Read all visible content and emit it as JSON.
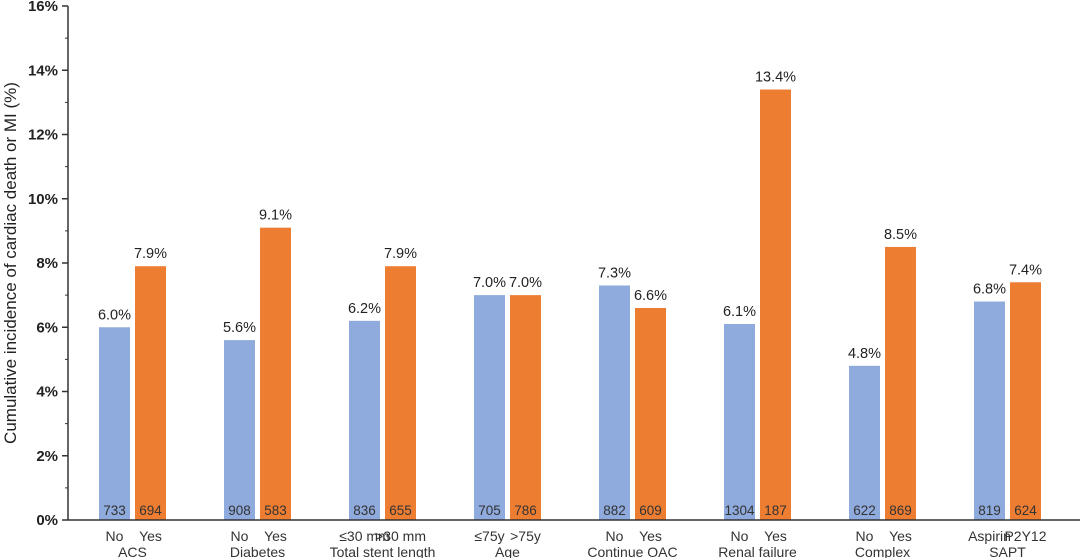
{
  "chart_data": {
    "type": "bar",
    "title": "",
    "ylabel": "Cumulative incidence of cardiac death or MI (%)",
    "xlabel": "",
    "ylim": [
      0,
      16
    ],
    "yticks": [
      0,
      2,
      4,
      6,
      8,
      10,
      12,
      14,
      16
    ],
    "ytick_labels": [
      "0%",
      "2%",
      "4%",
      "6%",
      "8%",
      "10%",
      "12%",
      "14%",
      "16%"
    ],
    "grid": false,
    "legend": "none",
    "colors": {
      "first": "#8faadc",
      "second": "#ed7d31"
    },
    "groups": [
      {
        "name": "ACS",
        "bars": [
          {
            "label": "No",
            "value": 6.0,
            "value_label": "6.0%",
            "n": "733"
          },
          {
            "label": "Yes",
            "value": 7.9,
            "value_label": "7.9%",
            "n": "694"
          }
        ]
      },
      {
        "name": "Diabetes",
        "bars": [
          {
            "label": "No",
            "value": 5.6,
            "value_label": "5.6%",
            "n": "908"
          },
          {
            "label": "Yes",
            "value": 9.1,
            "value_label": "9.1%",
            "n": "583"
          }
        ]
      },
      {
        "name": "Total stent length",
        "bars": [
          {
            "label": "≤30 mm",
            "value": 6.2,
            "value_label": "6.2%",
            "n": "836"
          },
          {
            "label": ">30 mm",
            "value": 7.9,
            "value_label": "7.9%",
            "n": "655"
          }
        ]
      },
      {
        "name": "Age",
        "bars": [
          {
            "label": "≤75y",
            "value": 7.0,
            "value_label": "7.0%",
            "n": "705"
          },
          {
            "label": ">75y",
            "value": 7.0,
            "value_label": "7.0%",
            "n": "786"
          }
        ]
      },
      {
        "name": "Continue OAC",
        "bars": [
          {
            "label": "No",
            "value": 7.3,
            "value_label": "7.3%",
            "n": "882"
          },
          {
            "label": "Yes",
            "value": 6.6,
            "value_label": "6.6%",
            "n": "609"
          }
        ]
      },
      {
        "name": "Renal failure",
        "bars": [
          {
            "label": "No",
            "value": 6.1,
            "value_label": "6.1%",
            "n": "1304"
          },
          {
            "label": "Yes",
            "value": 13.4,
            "value_label": "13.4%",
            "n": "187"
          }
        ]
      },
      {
        "name": "Complex",
        "bars": [
          {
            "label": "No",
            "value": 4.8,
            "value_label": "4.8%",
            "n": "622"
          },
          {
            "label": "Yes",
            "value": 8.5,
            "value_label": "8.5%",
            "n": "869"
          }
        ]
      },
      {
        "name": "SAPT",
        "bars": [
          {
            "label": "Aspirin",
            "value": 6.8,
            "value_label": "6.8%",
            "n": "819"
          },
          {
            "label": "P2Y12",
            "value": 7.4,
            "value_label": "7.4%",
            "n": "624"
          }
        ]
      }
    ]
  }
}
